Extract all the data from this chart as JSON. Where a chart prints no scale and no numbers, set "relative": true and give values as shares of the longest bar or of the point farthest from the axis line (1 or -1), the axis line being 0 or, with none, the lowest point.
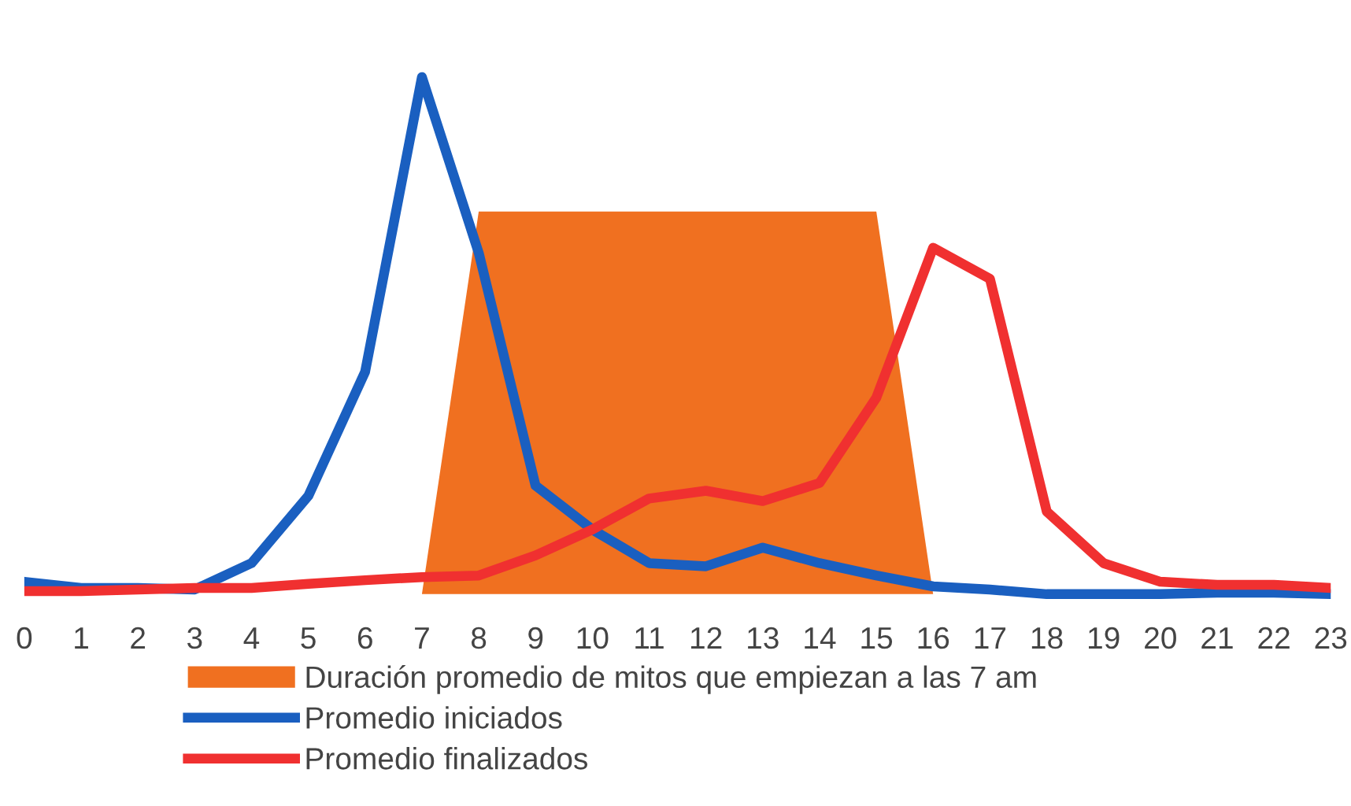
{
  "chart_data": {
    "type": "line",
    "relative": true,
    "grid": false,
    "legend": "bottom",
    "xlim": [
      0,
      23
    ],
    "xticks": [
      0,
      1,
      2,
      3,
      4,
      5,
      6,
      7,
      8,
      9,
      10,
      11,
      12,
      13,
      14,
      15,
      16,
      17,
      18,
      19,
      20,
      21,
      22,
      23
    ],
    "series": [
      {
        "name": "Duración promedio de mitos que empiezan a las 7 am",
        "type": "area",
        "color": "#f07020",
        "x": [
          7,
          8,
          15,
          16
        ],
        "values": [
          0,
          0.74,
          0.74,
          0
        ]
      },
      {
        "name": "Promedio iniciados",
        "color": "#1a5fc0",
        "x": [
          0,
          1,
          2,
          3,
          4,
          5,
          6,
          7,
          8,
          9,
          10,
          11,
          12,
          13,
          14,
          15,
          16,
          17,
          18,
          19,
          20,
          21,
          22,
          23
        ],
        "values": [
          0.024,
          0.012,
          0.012,
          0.009,
          0.06,
          0.19,
          0.43,
          1.0,
          0.66,
          0.21,
          0.125,
          0.06,
          0.054,
          0.09,
          0.06,
          0.036,
          0.015,
          0.009,
          0,
          0,
          0,
          0.003,
          0.003,
          0
        ]
      },
      {
        "name": "Promedio finalizados",
        "color": "#f03030",
        "x": [
          0,
          1,
          2,
          3,
          4,
          5,
          6,
          7,
          8,
          9,
          10,
          11,
          12,
          13,
          14,
          15,
          16,
          17,
          18,
          19,
          20,
          21,
          22,
          23
        ],
        "values": [
          0.006,
          0.006,
          0.009,
          0.012,
          0.012,
          0.02,
          0.027,
          0.033,
          0.036,
          0.075,
          0.125,
          0.185,
          0.2,
          0.18,
          0.215,
          0.38,
          0.67,
          0.61,
          0.16,
          0.06,
          0.024,
          0.018,
          0.018,
          0.012
        ]
      }
    ]
  }
}
